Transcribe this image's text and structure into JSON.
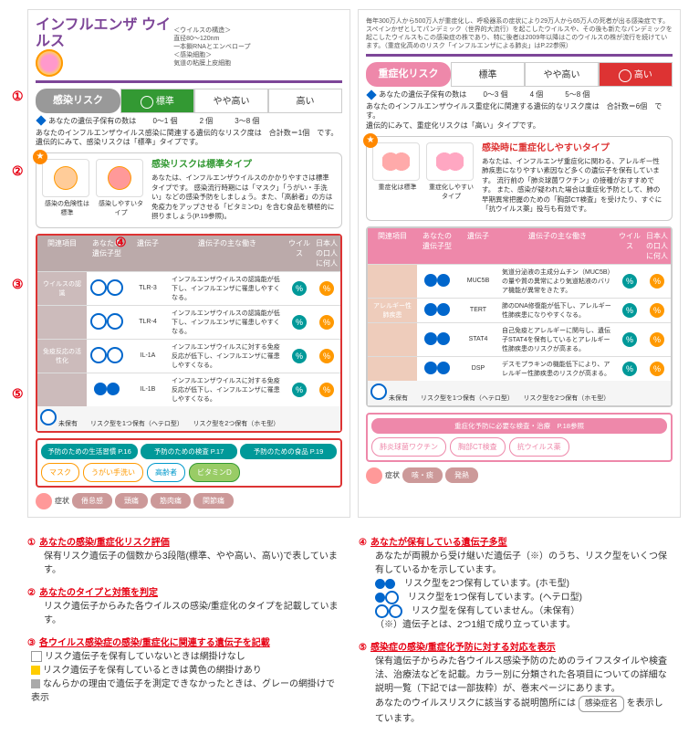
{
  "left": {
    "title": "インフルエンザ\nウイルス",
    "hdr_meta": "＜ウイルスの構造＞\n直径80〜120nm\n一本鎖RNAとエンベロープ\n＜感染細胞＞\n気道の粘膜上皮細胞",
    "risk_label": "感染リスク",
    "segs": [
      "標準",
      "やや高い",
      "高い"
    ],
    "seg_on": 0,
    "count_lbl": "あなたの遺伝子保有の数は",
    "counts": [
      "0〜1 個",
      "2 個",
      "3〜8 個"
    ],
    "summary": "あなたのインフルエンザウイルス感染に関連する遺伝的なリスク度は　合計数＝1個　です。\n遺伝的にみて、感染リスクは「標準」タイプです。",
    "type_title": "感染リスクは標準タイプ",
    "type_body": "あなたは、インフルエンザウイルスのかかりやすさは標準タイプです。\n感染流行時期には「マスク」「うがい・手洗い」などの感染予防をしましょう。また、「高齢者」の方は免疫力をアップさせる「ビタミンD」を含む食品を積極的に摂りましょう(P.19参照)。",
    "type_imgs": [
      "感染の危険性は標準",
      "感染しやすいタイプ"
    ],
    "tbl_head": [
      "関連項目",
      "あなたの遺伝子型",
      "遺伝子",
      "遺伝子の主な働き",
      "ウイルス",
      "日本人の口人に何人"
    ],
    "rows": [
      {
        "cat": "ウイルスの認識",
        "gene": "TLR-3",
        "desc": "インフルエンザウイルスの認識能が低下し、インフルエンザに罹患しやすくなる。",
        "g": "w",
        "d1": "teal",
        "d2": "ora"
      },
      {
        "cat": "",
        "gene": "TLR-4",
        "desc": "インフルエンザウイルスの認識能が低下し、インフルエンザに罹患しやすくなる。",
        "g": "w",
        "d1": "teal",
        "d2": "ora"
      },
      {
        "cat": "免疫反応の活性化",
        "gene": "IL-1A",
        "desc": "インフルエンザウイルスに対する免疫反応が低下し、インフルエンザに罹患しやすくなる。",
        "g": "w",
        "d1": "teal",
        "d2": "ora"
      },
      {
        "cat": "",
        "gene": "IL-1B",
        "desc": "インフルエンザウイルスに対する免疫反応が低下し、インフルエンザに罹患しやすくなる。",
        "g": "b",
        "d1": "teal",
        "d2": "ora"
      }
    ],
    "tbl_foot": "未保有　　リスク型を1つ保有（ヘテロ型）　　リスク型を2つ保有（ホモ型）",
    "prev_tabs": [
      "予防のための生活習慣 P.16",
      "予防のための検査 P.17",
      "予防のための食品 P.19"
    ],
    "pills": [
      "マスク",
      "うがい手洗い",
      "高齢者",
      "ビタミンD"
    ],
    "sym_lbl": "症状",
    "syms": [
      "倦怠感",
      "頭痛",
      "筋肉痛",
      "関節痛"
    ]
  },
  "right": {
    "hdr_body": "毎年300万人から500万人が重症化し、呼吸器系の症状により29万人から65万人の死者が出る感染症です。スペインかぜとしてパンデミック（世界的大流行）を起こしたウイルスや、その後も新たなパンデミックを起こしたウイルスもこの感染症の株であり、特に後者は2009年以降はこのウイルスの株が流行を続けています。（重症化高めのリスク「インフルエンザによる肺炎」はP.22参照）",
    "risk_label": "重症化リスク",
    "segs": [
      "標準",
      "やや高い",
      "高い"
    ],
    "seg_on": 2,
    "count_lbl": "あなたの遺伝子保有の数は",
    "counts": [
      "0〜3 個",
      "4 個",
      "5〜8 個"
    ],
    "summary": "あなたのインフルエンザウイルス重症化に関連する遺伝的なリスク度は　合計数＝6個　です。\n遺伝的にみて、重症化リスクは「高い」タイプです。",
    "type_title": "感染時に重症化しやすいタイプ",
    "type_body": "あなたは、インフルエンザ重症化に関わる、アレルギー性肺疾患になりやすい素因など多くの遺伝子を保有しています。\n流行前の「肺炎球菌ワクチン」の接種がおすすめです。\nまた、感染が疑われた場合は重症化予防として、肺の早期異常把握のための「胸部CT検査」を受けたり、すぐに「抗ウイルス薬」投与も有効です。",
    "type_imgs": [
      "重症化は標準",
      "重症化しやすいタイプ"
    ],
    "rows": [
      {
        "cat": "",
        "gene": "MUC5B",
        "desc": "気道分泌液の主成分ムチン（MUC5B）の量や質の異常により気道粘液のバリア機能が異常をきたす。",
        "g": "b",
        "d1": "teal",
        "d2": "ora"
      },
      {
        "cat": "アレルギー性肺疾患",
        "gene": "TERT",
        "desc": "肺のDNA修復能が低下し、アレルギー性肺疾患になりやすくなる。",
        "g": "b",
        "d1": "teal",
        "d2": "ora"
      },
      {
        "cat": "",
        "gene": "STAT4",
        "desc": "自己免疫とアレルギーに関与し、遺伝子STAT4を保有しているとアレルギー性肺疾患のリスクが高まる。",
        "g": "b",
        "d1": "teal",
        "d2": "ora"
      },
      {
        "cat": "",
        "gene": "DSP",
        "desc": "デスモプラキンの機能低下により、アレルギー性肺疾患のリスクが高まる。",
        "g": "b",
        "d1": "teal",
        "d2": "ora"
      }
    ],
    "tbl_foot": "未保有　　リスク型を1つ保有（ヘテロ型）　　リスク型を2つ保有（ホモ型）",
    "prev_tab": "重症化予防に必要な検査・治療　P.18参照",
    "pills": [
      "肺炎球菌ワクチン",
      "胸部CT検査",
      "抗ウイルス薬"
    ],
    "sym_lbl": "症状",
    "syms": [
      "咳・痰",
      "発熱"
    ]
  },
  "legend": {
    "1": {
      "h": "あなたの感染/重症化リスク評価",
      "b": "保有リスク遺伝子の個数から3段階(標準、やや高い、高い)で表しています。"
    },
    "2": {
      "h": "あなたのタイプと対策を判定",
      "b": "リスク遺伝子からみた各ウイルスの感染/重症化のタイプを記載しています。"
    },
    "3": {
      "h": "各ウイルス感染症の感染/重症化に関連する遺伝子を記載",
      "b1": "リスク遺伝子を保有していないときは網掛けなし",
      "b2": "リスク遺伝子を保有しているときは黄色の網掛けあり",
      "b3": "なんらかの理由で遺伝子を測定できなかったときは、グレーの網掛けで表示"
    },
    "4": {
      "h": "あなたが保有している遺伝子多型",
      "b": "あなたが両親から受け継いだ遺伝子（※）のうち、リスク型をいくつ保有しているかを示しています。",
      "l1": "リスク型を2つ保有しています。(ホモ型)",
      "l2": "リスク型を1つ保有しています。(ヘテロ型)",
      "l3": "リスク型を保有していません。（未保有）",
      "n": "（※）遺伝子とは、2つ1組で成り立っています。"
    },
    "5": {
      "h": "感染症の感染/重症化予防に対する対応を表示",
      "b": "保有遺伝子からみた各ウイルス感染予防のためのライフスタイルや検査法、治療法などを記載。カラー別に分類された各項目についての詳細な説明一覧（下記では一部抜粋）が、巻末ページにあります。\nあなたのウイルスリスクに該当する説明箇所には",
      "badge": "感染症名",
      "tail": "を表示しています。"
    }
  }
}
